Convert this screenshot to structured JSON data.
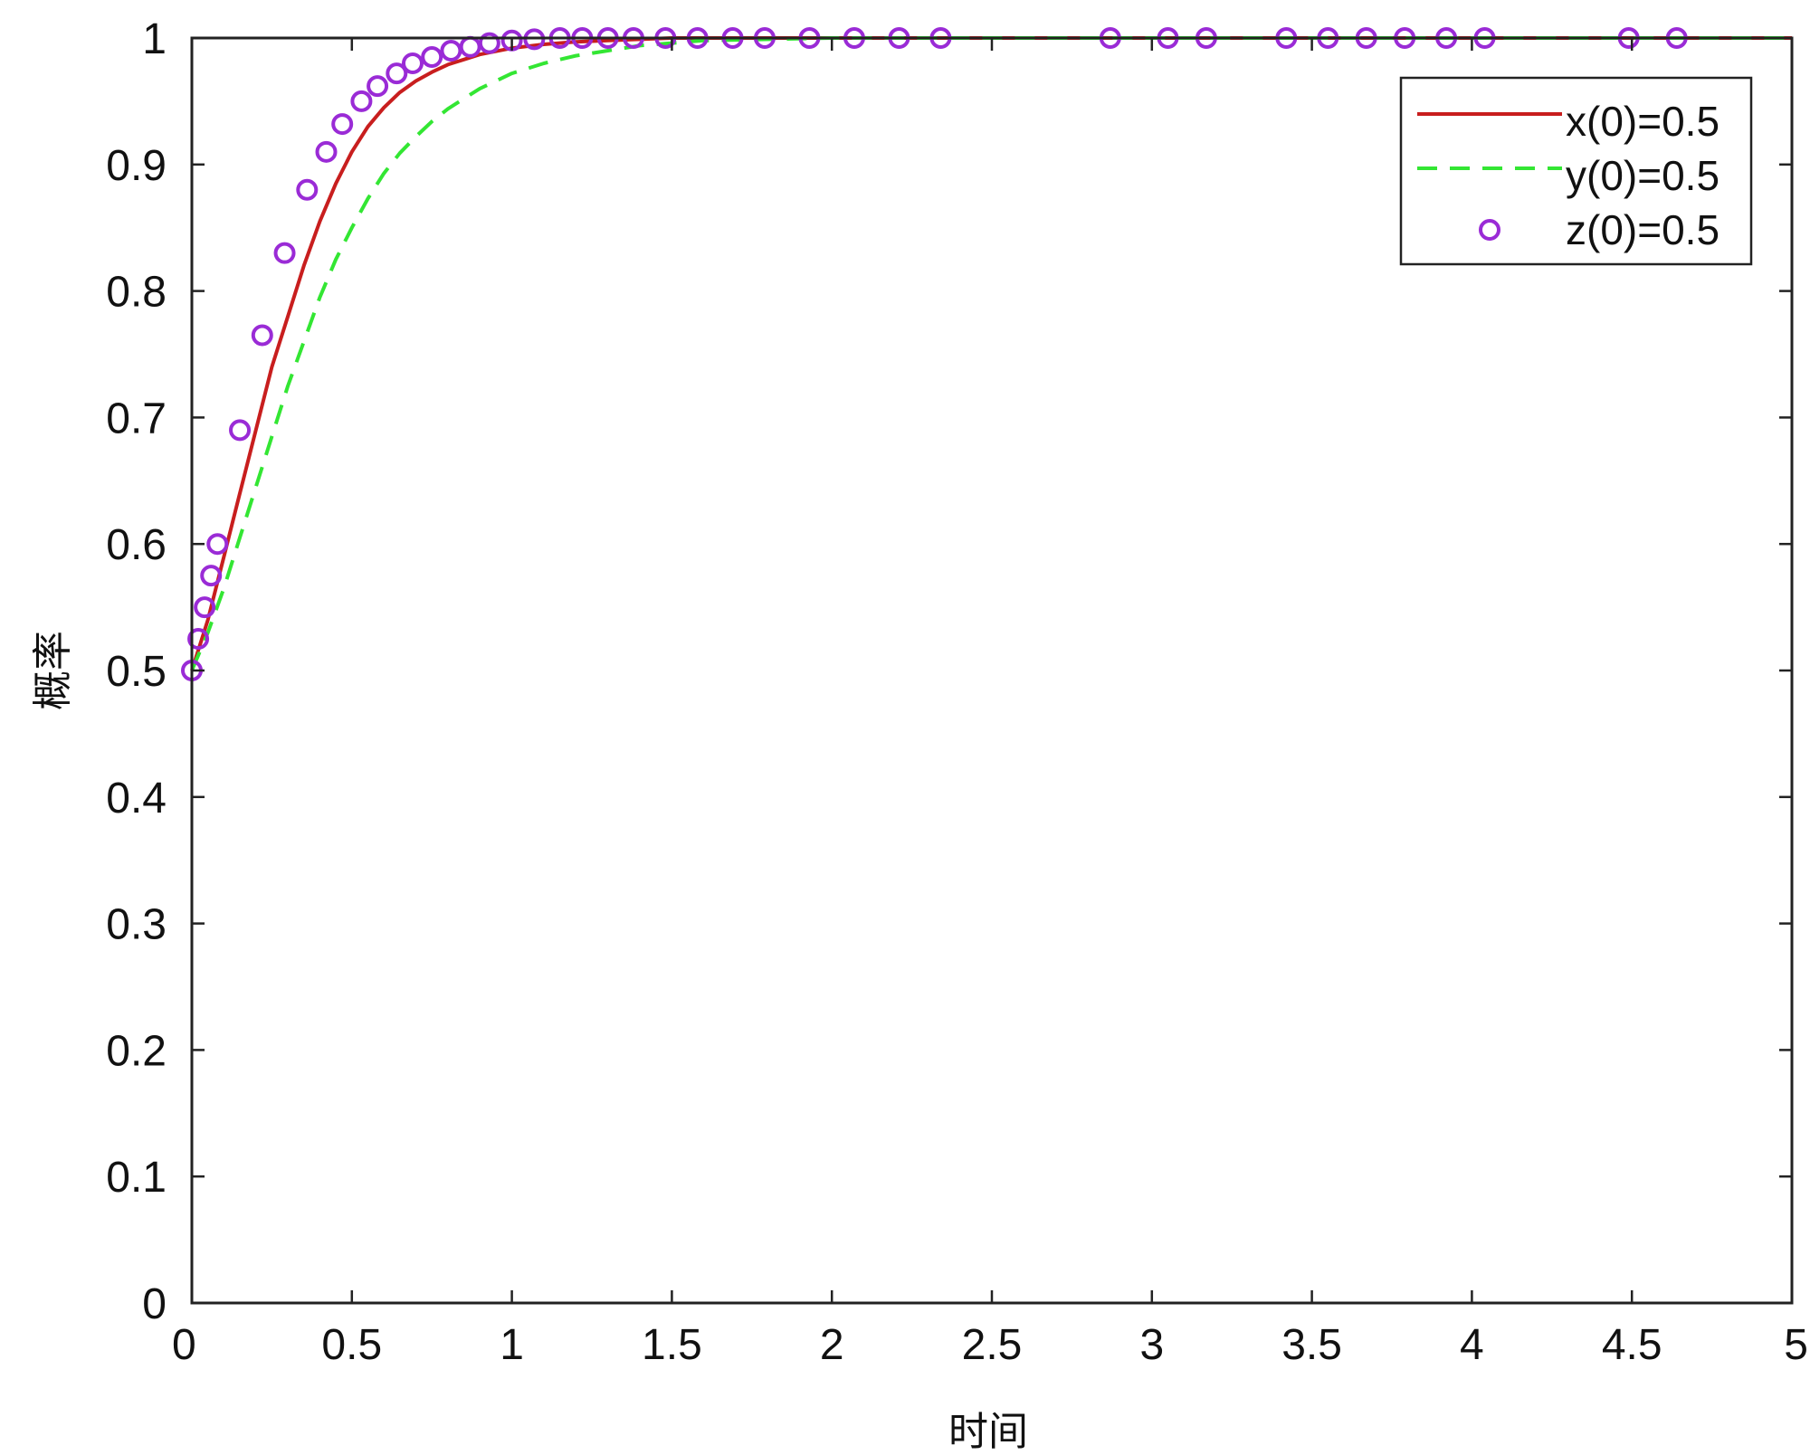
{
  "chart_data": {
    "type": "line",
    "title": "",
    "xlabel": "时间",
    "ylabel": "概率",
    "xlim": [
      0,
      5
    ],
    "ylim": [
      0,
      1
    ],
    "xticks": [
      "0",
      "0.5",
      "1",
      "1.5",
      "2",
      "2.5",
      "3",
      "3.5",
      "4",
      "4.5",
      "5"
    ],
    "yticks": [
      "0",
      "0.1",
      "0.2",
      "0.3",
      "0.4",
      "0.5",
      "0.6",
      "0.7",
      "0.8",
      "0.9",
      "1"
    ],
    "grid": false,
    "legend_position": "top-right",
    "series": [
      {
        "name": "x(0)=0.5",
        "style": "solid-line",
        "color": "#c81e1e",
        "x": [
          0,
          0.05,
          0.1,
          0.15,
          0.2,
          0.25,
          0.3,
          0.35,
          0.4,
          0.45,
          0.5,
          0.55,
          0.6,
          0.65,
          0.7,
          0.75,
          0.8,
          0.9,
          1.0,
          1.1,
          1.2,
          1.3,
          1.4,
          1.5,
          2,
          2.5,
          3,
          3.5,
          4,
          4.5,
          5
        ],
        "y": [
          0.5,
          0.54,
          0.59,
          0.64,
          0.69,
          0.74,
          0.78,
          0.82,
          0.855,
          0.885,
          0.91,
          0.93,
          0.945,
          0.957,
          0.966,
          0.973,
          0.979,
          0.987,
          0.992,
          0.995,
          0.997,
          0.998,
          0.999,
          1.0,
          1.0,
          1.0,
          1.0,
          1.0,
          1.0,
          1.0,
          1.0
        ]
      },
      {
        "name": "y(0)=0.5",
        "style": "dashed-line",
        "color": "#33e633",
        "x": [
          0,
          0.05,
          0.1,
          0.15,
          0.2,
          0.25,
          0.3,
          0.35,
          0.4,
          0.45,
          0.5,
          0.55,
          0.6,
          0.65,
          0.7,
          0.75,
          0.8,
          0.9,
          1.0,
          1.1,
          1.2,
          1.3,
          1.4,
          1.5,
          1.6,
          2,
          2.5,
          3,
          3.5,
          4,
          4.5,
          5
        ],
        "y": [
          0.5,
          0.53,
          0.565,
          0.605,
          0.645,
          0.685,
          0.725,
          0.76,
          0.795,
          0.825,
          0.85,
          0.873,
          0.893,
          0.909,
          0.922,
          0.934,
          0.944,
          0.96,
          0.972,
          0.98,
          0.986,
          0.99,
          0.994,
          0.996,
          0.998,
          1.0,
          1.0,
          1.0,
          1.0,
          1.0,
          1.0,
          1.0
        ]
      },
      {
        "name": "z(0)=0.5",
        "style": "circle-markers",
        "color": "#9a2bd6",
        "x": [
          0,
          0.02,
          0.04,
          0.06,
          0.08,
          0.15,
          0.22,
          0.29,
          0.36,
          0.42,
          0.47,
          0.53,
          0.58,
          0.64,
          0.69,
          0.75,
          0.81,
          0.87,
          0.93,
          1.0,
          1.07,
          1.15,
          1.22,
          1.3,
          1.38,
          1.48,
          1.58,
          1.69,
          1.79,
          1.93,
          2.07,
          2.21,
          2.34,
          2.87,
          3.05,
          3.17,
          3.42,
          3.55,
          3.67,
          3.79,
          3.92,
          4.04,
          4.49,
          4.64
        ],
        "y": [
          0.5,
          0.525,
          0.55,
          0.575,
          0.6,
          0.69,
          0.765,
          0.83,
          0.88,
          0.91,
          0.932,
          0.95,
          0.962,
          0.972,
          0.98,
          0.985,
          0.99,
          0.993,
          0.996,
          0.998,
          0.999,
          1.0,
          1.0,
          1.0,
          1.0,
          1.0,
          1.0,
          1.0,
          1.0,
          1.0,
          1.0,
          1.0,
          1.0,
          1.0,
          1.0,
          1.0,
          1.0,
          1.0,
          1.0,
          1.0,
          1.0,
          1.0,
          1.0,
          1.0
        ]
      }
    ]
  }
}
